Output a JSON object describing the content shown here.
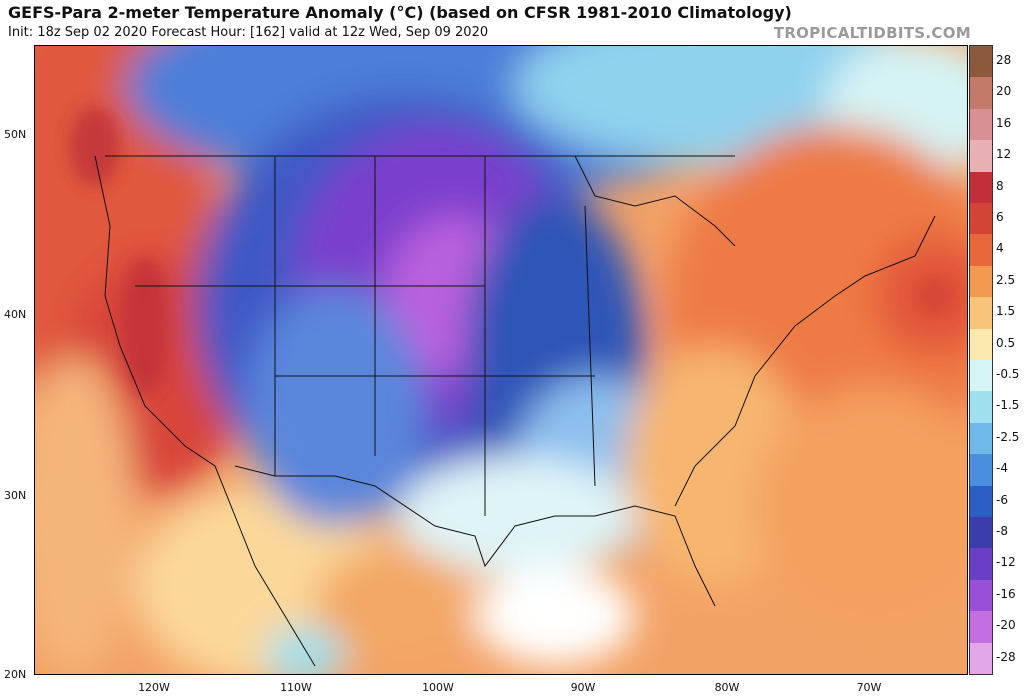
{
  "title": "GEFS-Para 2-meter Temperature Anomaly (°C) (based on CFSR 1981-2010 Climatology)",
  "subtitle": "Init: 18z Sep 02 2020   Forecast Hour: [162]   valid at 12z Wed, Sep 09 2020",
  "watermark": "TROPICALTIDBITS.COM",
  "map": {
    "latitude_labels": [
      "50N",
      "40N",
      "30N",
      "20N"
    ],
    "longitude_labels": [
      "120W",
      "110W",
      "100W",
      "90W",
      "80W",
      "70W"
    ]
  },
  "colorbar": {
    "labels": [
      "28",
      "20",
      "16",
      "12",
      "8",
      "6",
      "4",
      "2.5",
      "1.5",
      "0.5",
      "-0.5",
      "-1.5",
      "-2.5",
      "-4",
      "-6",
      "-8",
      "-12",
      "-16",
      "-20",
      "-28"
    ],
    "colors": [
      "#8b5a3c",
      "#c47a6a",
      "#d88f94",
      "#e9b0b4",
      "#c0303a",
      "#d24436",
      "#e8683c",
      "#f29a52",
      "#f7c57a",
      "#fbe8ae",
      "#d4f4f6",
      "#9fe0ee",
      "#6fb8ea",
      "#4a8ede",
      "#2b5fc4",
      "#3b3dad",
      "#6a3fc6",
      "#9a4fd8",
      "#c46fe0",
      "#e3a6e8"
    ]
  }
}
